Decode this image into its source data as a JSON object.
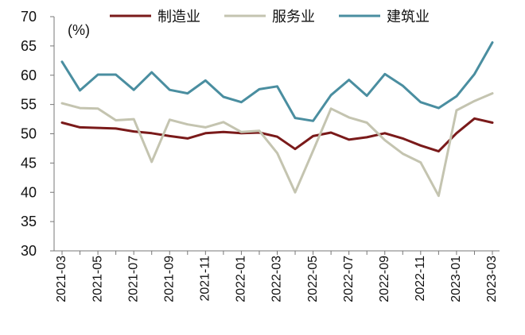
{
  "chart_data": {
    "type": "line",
    "unit_label": "(%)",
    "ylim": [
      30,
      70
    ],
    "y_ticks": [
      30,
      35,
      40,
      45,
      50,
      55,
      60,
      65,
      70
    ],
    "x": [
      "2021-03",
      "2021-04",
      "2021-05",
      "2021-06",
      "2021-07",
      "2021-08",
      "2021-09",
      "2021-10",
      "2021-11",
      "2021-12",
      "2022-01",
      "2022-02",
      "2022-03",
      "2022-04",
      "2022-05",
      "2022-06",
      "2022-07",
      "2022-08",
      "2022-09",
      "2022-10",
      "2022-11",
      "2022-12",
      "2023-01",
      "2023-02",
      "2023-03"
    ],
    "x_tick_labels": [
      "2021-03",
      "2021-05",
      "2021-07",
      "2021-09",
      "2021-11",
      "2022-01",
      "2022-03",
      "2022-05",
      "2022-07",
      "2022-09",
      "2022-11",
      "2023-01",
      "2023-03"
    ],
    "grid": false,
    "legend_position": "top",
    "series": [
      {
        "name": "制造业",
        "color": "#7a1a1a",
        "values": [
          51.9,
          51.1,
          51.0,
          50.9,
          50.4,
          50.1,
          49.6,
          49.2,
          50.1,
          50.3,
          50.1,
          50.2,
          49.5,
          47.4,
          49.6,
          50.2,
          49.0,
          49.4,
          50.1,
          49.2,
          48.0,
          47.0,
          50.1,
          52.6,
          51.9
        ]
      },
      {
        "name": "服务业",
        "color": "#c4c4b0",
        "values": [
          55.2,
          54.4,
          54.3,
          52.3,
          52.5,
          45.2,
          52.4,
          51.6,
          51.1,
          52.0,
          50.3,
          50.5,
          46.7,
          40.0,
          47.1,
          54.3,
          52.8,
          51.9,
          48.9,
          46.6,
          45.1,
          39.4,
          54.0,
          55.6,
          56.9
        ]
      },
      {
        "name": "建筑业",
        "color": "#4a8ea0",
        "values": [
          62.3,
          57.4,
          60.1,
          60.1,
          57.5,
          60.5,
          57.5,
          56.9,
          59.1,
          56.3,
          55.4,
          57.6,
          58.1,
          52.7,
          52.2,
          56.6,
          59.2,
          56.5,
          60.2,
          58.2,
          55.4,
          54.4,
          56.4,
          60.2,
          65.6
        ]
      }
    ]
  }
}
